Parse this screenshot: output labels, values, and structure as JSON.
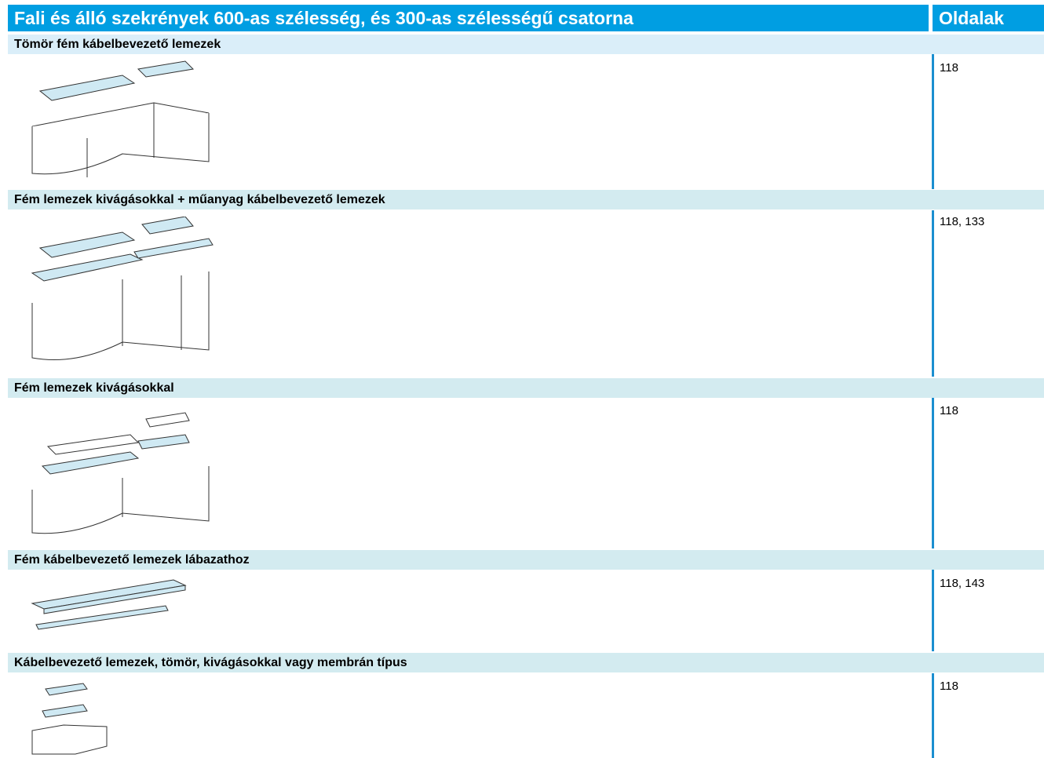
{
  "header": {
    "title": "Fali és álló szekrények 600-as szélesség,  és 300-as szélességű csatorna",
    "pages_label": "Oldalak"
  },
  "sections": [
    {
      "title": "Tömör fém kábelbevezető lemezek",
      "pages": "118"
    },
    {
      "title": "Fém lemezek kivágásokkal + műanyag kábelbevezető lemezek",
      "pages": "118, 133"
    },
    {
      "title": "Fém lemezek kivágásokkal",
      "pages": "118"
    },
    {
      "title": "Fém kábelbevezető lemezek lábazathoz",
      "pages": "118, 143"
    },
    {
      "title": "Kábelbevezető lemezek, tömör, kivágásokkal vagy membrán típus",
      "pages": "118"
    }
  ]
}
